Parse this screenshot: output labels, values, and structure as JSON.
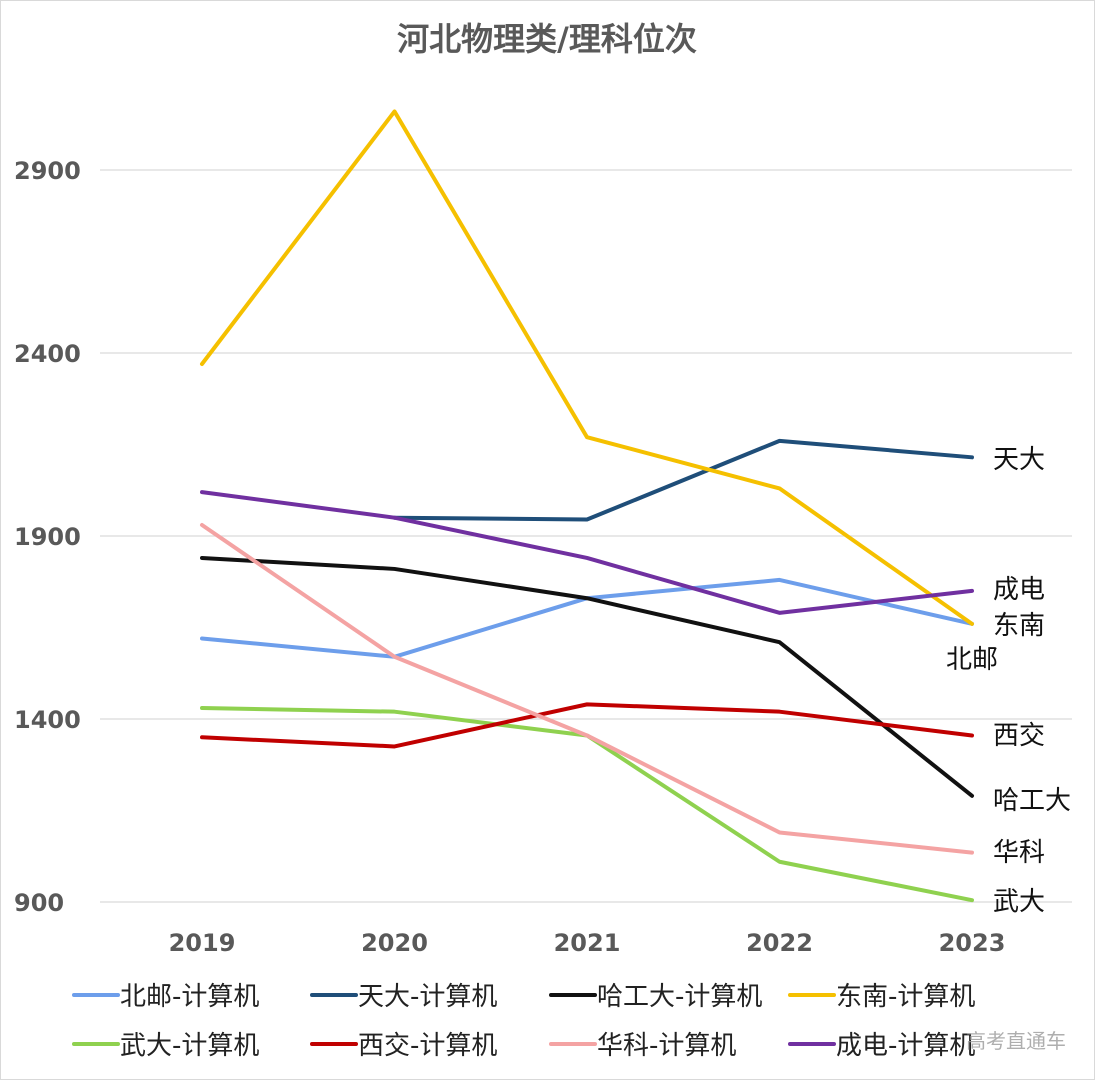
{
  "watermark": "高考直通车",
  "chart_data": {
    "type": "line",
    "title": "河北物理类/理科位次",
    "xlabel": "",
    "ylabel": "",
    "x": [
      "2019",
      "2020",
      "2021",
      "2022",
      "2023"
    ],
    "yticks": [
      "2900",
      "2400",
      "1900",
      "1400",
      "900"
    ],
    "ylim": [
      900,
      3100
    ],
    "grid": true,
    "legend_position": "bottom",
    "series": [
      {
        "name": "北邮-计算机",
        "color": "#6d9eeb",
        "values": [
          1620,
          1570,
          1730,
          1780,
          1660
        ],
        "end_label": "北邮"
      },
      {
        "name": "天大-计算机",
        "color": "#1f4e79",
        "values": [
          null,
          1950,
          1945,
          2160,
          2115
        ],
        "end_label": "天大"
      },
      {
        "name": "哈工大-计算机",
        "color": "#111111",
        "values": [
          1840,
          1810,
          1730,
          1610,
          1190
        ],
        "end_label": "哈工大"
      },
      {
        "name": "东南-计算机",
        "color": "#f5c000",
        "values": [
          2370,
          3060,
          2170,
          2030,
          1660
        ],
        "end_label": "东南"
      },
      {
        "name": "武大-计算机",
        "color": "#8fd14f",
        "values": [
          1430,
          1420,
          1355,
          1010,
          905
        ],
        "end_label": "武大"
      },
      {
        "name": "西交-计算机",
        "color": "#c00000",
        "values": [
          1350,
          1325,
          1440,
          1420,
          1355
        ],
        "end_label": "西交"
      },
      {
        "name": "华科-计算机",
        "color": "#f4a3a3",
        "values": [
          1930,
          1570,
          1355,
          1090,
          1035
        ],
        "end_label": "华科"
      },
      {
        "name": "成电-计算机",
        "color": "#7030a0",
        "values": [
          2020,
          1950,
          1840,
          1690,
          1750
        ],
        "end_label": "成电"
      }
    ]
  }
}
